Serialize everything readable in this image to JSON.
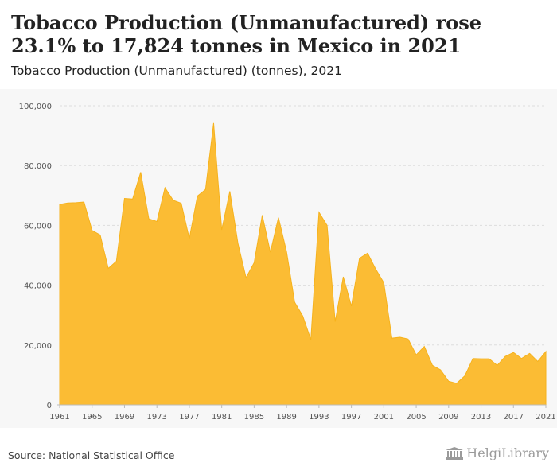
{
  "header": {
    "title": "Tobacco Production (Unmanufactured) rose 23.1% to 17,824 tonnes in Mexico in 2021",
    "subtitle": "Tobacco Production (Unmanufactured) (tonnes), 2021"
  },
  "footer": {
    "source": "Source: National Statistical Office",
    "brand": "HelgiLibrary"
  },
  "colors": {
    "area_fill": "#fbbc34",
    "area_stroke": "#f6b21c",
    "grid": "#dddddd",
    "axis_text": "#555555",
    "panel_bg": "#f7f7f7"
  },
  "chart_data": {
    "type": "area",
    "title": "Tobacco Production (Unmanufactured) rose 23.1% to 17,824 tonnes in Mexico in 2021",
    "subtitle": "Tobacco Production (Unmanufactured) (tonnes), 2021",
    "xlabel": "",
    "ylabel": "",
    "ylim": [
      0,
      100000
    ],
    "xlim": [
      1961,
      2021
    ],
    "grid": true,
    "legend": "none",
    "y_ticks": [
      0,
      20000,
      40000,
      60000,
      80000,
      100000
    ],
    "y_tick_labels": [
      "0",
      "20,000",
      "40,000",
      "60,000",
      "80,000",
      "100,000"
    ],
    "x_ticks": [
      1961,
      1965,
      1969,
      1973,
      1977,
      1981,
      1985,
      1989,
      1993,
      1997,
      2001,
      2005,
      2009,
      2013,
      2017,
      2021
    ],
    "series": [
      {
        "name": "",
        "x": [
          1961,
          1962,
          1963,
          1964,
          1965,
          1966,
          1967,
          1968,
          1969,
          1970,
          1971,
          1972,
          1973,
          1974,
          1975,
          1976,
          1977,
          1978,
          1979,
          1980,
          1981,
          1982,
          1983,
          1984,
          1985,
          1986,
          1987,
          1988,
          1989,
          1990,
          1991,
          1992,
          1993,
          1994,
          1995,
          1996,
          1997,
          1998,
          1999,
          2000,
          2001,
          2002,
          2003,
          2004,
          2005,
          2006,
          2007,
          2008,
          2009,
          2010,
          2011,
          2012,
          2013,
          2014,
          2015,
          2016,
          2017,
          2018,
          2019,
          2020,
          2021
        ],
        "values": [
          67000,
          67500,
          67600,
          67800,
          58300,
          56800,
          45600,
          48000,
          69000,
          68800,
          77800,
          62200,
          61300,
          72600,
          68400,
          67400,
          55600,
          69800,
          72000,
          94200,
          58500,
          71400,
          54000,
          42500,
          47500,
          63400,
          51000,
          62600,
          51200,
          34300,
          29700,
          21800,
          64400,
          60000,
          27800,
          42800,
          33000,
          49000,
          50700,
          45400,
          40800,
          22300,
          22600,
          22000,
          16700,
          19500,
          13200,
          11700,
          7900,
          7200,
          9700,
          15500,
          15400,
          15400,
          13200,
          16200,
          17500,
          15500,
          17200,
          14500,
          17800
        ]
      }
    ]
  }
}
